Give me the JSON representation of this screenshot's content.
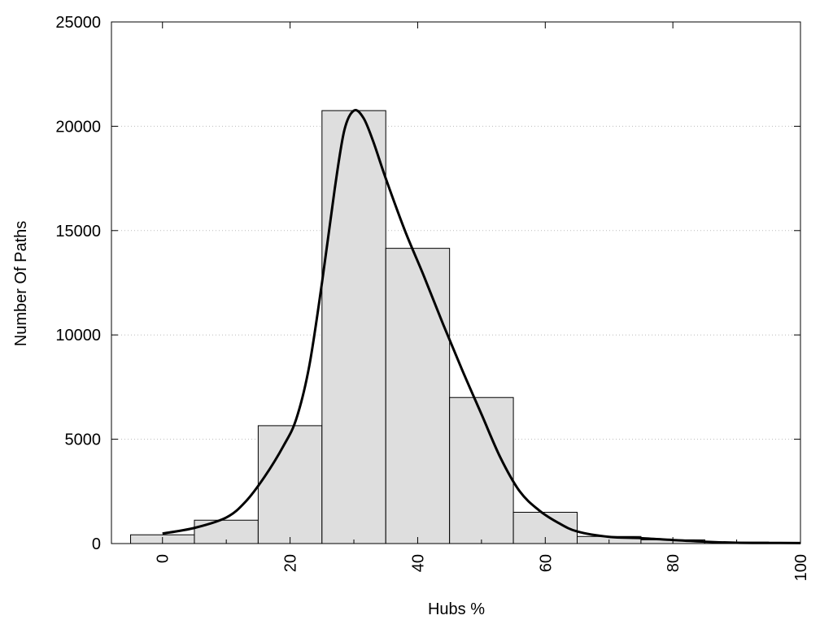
{
  "chart_data": {
    "type": "bar",
    "xlabel": "Hubs %",
    "ylabel": "Number Of Paths",
    "xlim": [
      -8,
      100
    ],
    "ylim": [
      0,
      25000
    ],
    "x_ticks": [
      0,
      20,
      40,
      60,
      80,
      100
    ],
    "y_ticks": [
      0,
      5000,
      10000,
      15000,
      20000,
      25000
    ],
    "grid": "horizontal dotted",
    "bin_width": 10,
    "bins": [
      {
        "center": 0,
        "value": 420
      },
      {
        "center": 10,
        "value": 1120
      },
      {
        "center": 20,
        "value": 5650
      },
      {
        "center": 30,
        "value": 20750
      },
      {
        "center": 40,
        "value": 14150
      },
      {
        "center": 50,
        "value": 7000
      },
      {
        "center": 60,
        "value": 1500
      },
      {
        "center": 70,
        "value": 340
      },
      {
        "center": 80,
        "value": 180
      },
      {
        "center": 90,
        "value": 70
      }
    ],
    "curve": [
      {
        "x": 0,
        "y": 480
      },
      {
        "x": 5,
        "y": 750
      },
      {
        "x": 10,
        "y": 1250
      },
      {
        "x": 13,
        "y": 2000
      },
      {
        "x": 16,
        "y": 3200
      },
      {
        "x": 19,
        "y": 4700
      },
      {
        "x": 21,
        "y": 6000
      },
      {
        "x": 23,
        "y": 8500
      },
      {
        "x": 25,
        "y": 12500
      },
      {
        "x": 27,
        "y": 17000
      },
      {
        "x": 28.5,
        "y": 19800
      },
      {
        "x": 30,
        "y": 20750
      },
      {
        "x": 31.5,
        "y": 20400
      },
      {
        "x": 33,
        "y": 19300
      },
      {
        "x": 35,
        "y": 17500
      },
      {
        "x": 38,
        "y": 15000
      },
      {
        "x": 41,
        "y": 12800
      },
      {
        "x": 44,
        "y": 10500
      },
      {
        "x": 47,
        "y": 8300
      },
      {
        "x": 50,
        "y": 6200
      },
      {
        "x": 53,
        "y": 4100
      },
      {
        "x": 56,
        "y": 2500
      },
      {
        "x": 59,
        "y": 1600
      },
      {
        "x": 62,
        "y": 1000
      },
      {
        "x": 65,
        "y": 580
      },
      {
        "x": 70,
        "y": 320
      },
      {
        "x": 75,
        "y": 260
      },
      {
        "x": 80,
        "y": 170
      },
      {
        "x": 85,
        "y": 90
      },
      {
        "x": 90,
        "y": 40
      },
      {
        "x": 95,
        "y": 30
      },
      {
        "x": 100,
        "y": 25
      }
    ],
    "colors": {
      "bar_fill": "#dedede",
      "bar_stroke": "#000000",
      "curve": "#000000",
      "grid": "#bbbbbb"
    }
  }
}
